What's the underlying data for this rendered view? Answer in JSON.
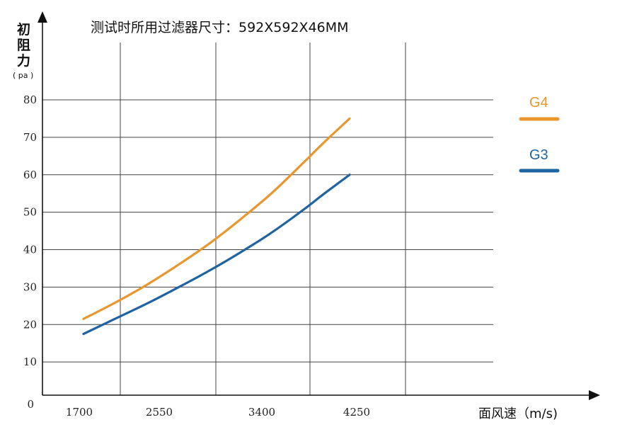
{
  "chart_data": {
    "type": "line",
    "title": "测试时所用过滤器尺寸：592X592X46MM",
    "ylabel_chars": [
      "初",
      "阻",
      "力"
    ],
    "yunit": "( pa )",
    "xlabel": "面风速（m/s)",
    "x_ticks": [
      "1700",
      "2550",
      "3400",
      "4250"
    ],
    "y_ticks": [
      "0",
      "10",
      "20",
      "30",
      "40",
      "50",
      "60",
      "70",
      "80"
    ],
    "ylim": [
      0,
      80
    ],
    "xlim": [
      1700,
      4250
    ],
    "grid": true,
    "legend_position": "right",
    "series": [
      {
        "name": "G4",
        "color": "#E8962E",
        "x": [
          1700,
          2000,
          2300,
          2600,
          2900,
          3200,
          3500,
          3800,
          4000,
          4250
        ],
        "y": [
          21.5,
          25.8,
          30.5,
          35.8,
          41.5,
          48,
          55,
          63,
          68.5,
          75
        ]
      },
      {
        "name": "G3",
        "color": "#1F64A0",
        "x": [
          1700,
          2000,
          2300,
          2600,
          2900,
          3200,
          3500,
          3800,
          4000,
          4250
        ],
        "y": [
          17.5,
          21.5,
          25.5,
          29.8,
          34.3,
          39.2,
          44.5,
          50.5,
          54.8,
          60
        ]
      }
    ]
  }
}
